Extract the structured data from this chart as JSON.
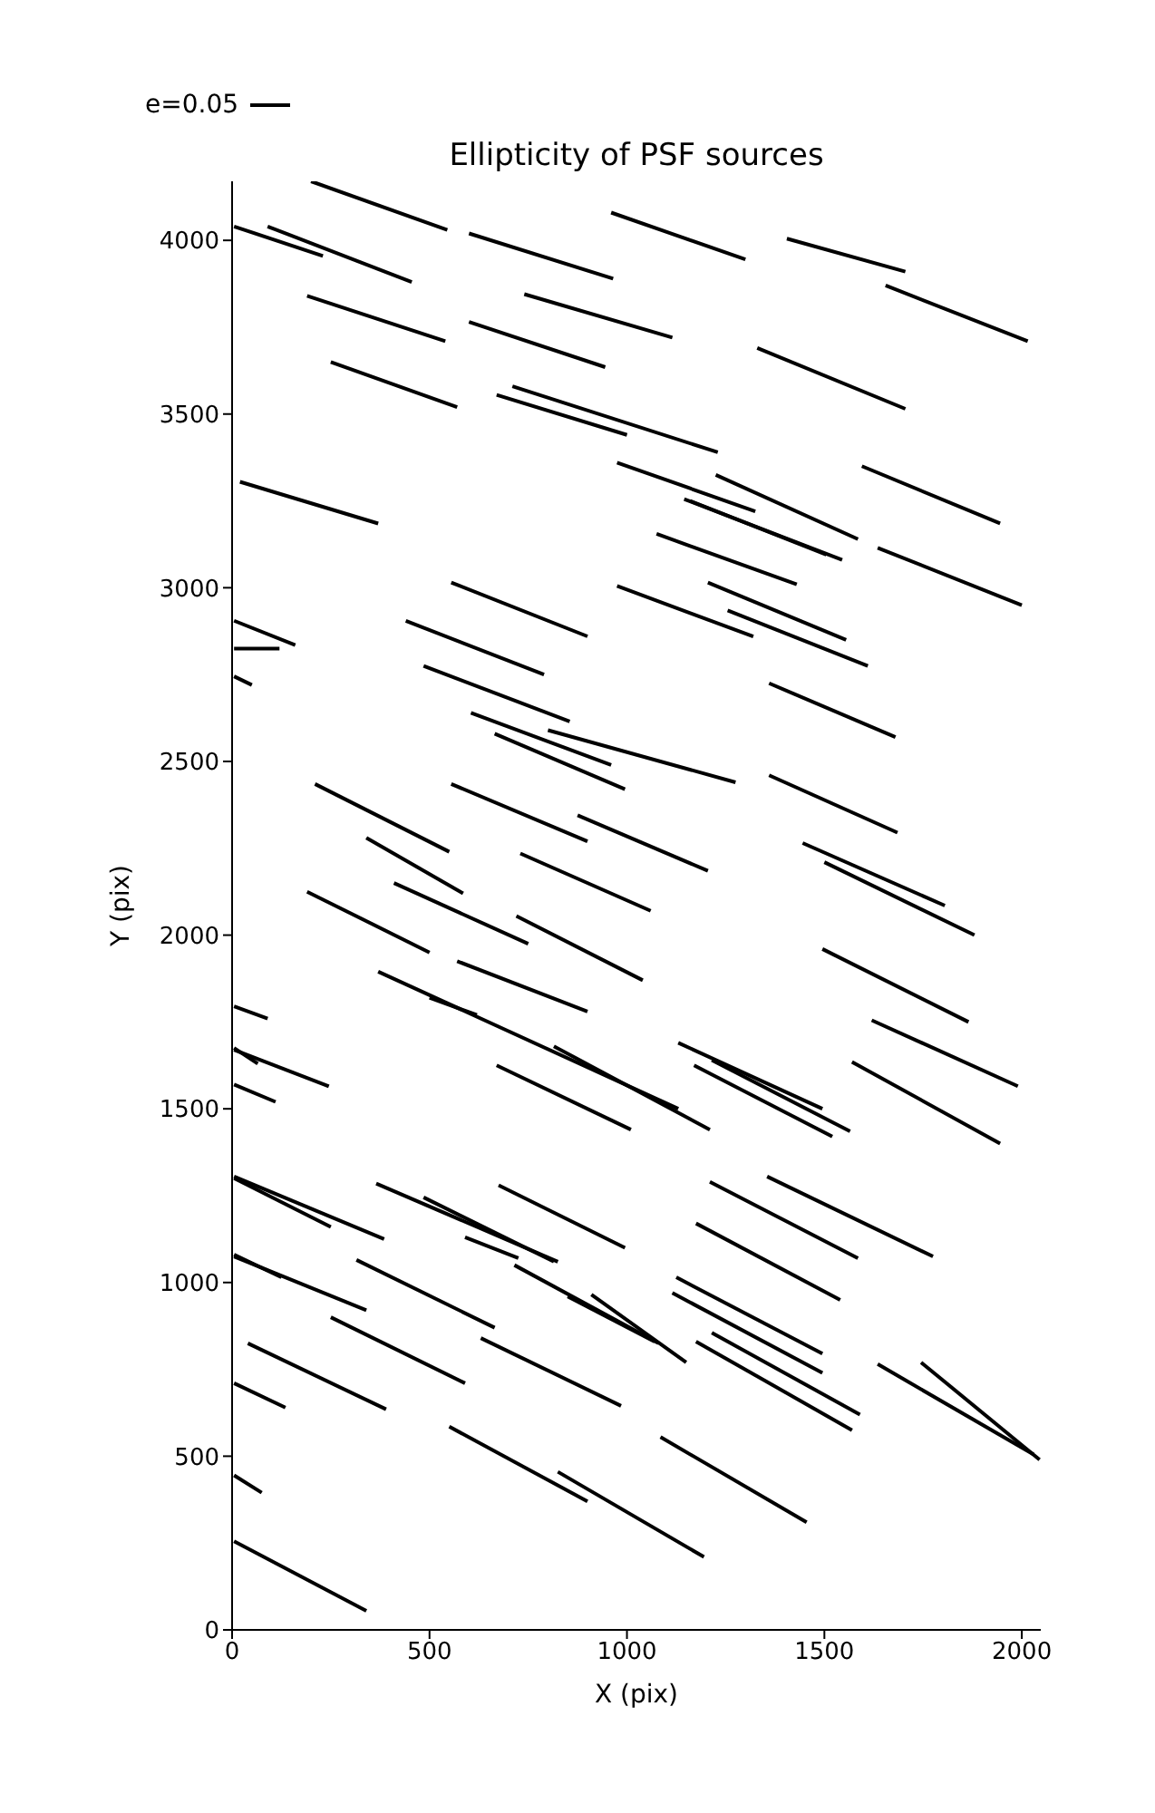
{
  "chart_data": {
    "type": "line",
    "title": "Ellipticity of PSF sources",
    "xlabel": "X (pix)",
    "ylabel": "Y (pix)",
    "line_style": "solid",
    "annotations": [
      "e=0.05"
    ],
    "xlim": [
      0,
      2048
    ],
    "ylim": [
      0,
      4170
    ],
    "xticks": [
      0,
      500,
      1000,
      1500,
      2000
    ],
    "yticks": [
      0,
      500,
      1000,
      1500,
      2000,
      2500,
      3000,
      3500,
      4000
    ],
    "series": [
      {
        "color": "#000000",
        "x": [
          200,
          545
        ],
        "values": [
          4170,
          4030
        ]
      },
      {
        "color": "#000000",
        "x": [
          5,
          230
        ],
        "values": [
          4040,
          3955
        ]
      },
      {
        "color": "#000000",
        "x": [
          90,
          455
        ],
        "values": [
          4040,
          3880
        ]
      },
      {
        "color": "#000000",
        "x": [
          600,
          965
        ],
        "values": [
          4020,
          3890
        ]
      },
      {
        "color": "#000000",
        "x": [
          960,
          1300
        ],
        "values": [
          4080,
          3945
        ]
      },
      {
        "color": "#000000",
        "x": [
          1405,
          1705
        ],
        "values": [
          4005,
          3910
        ]
      },
      {
        "color": "#000000",
        "x": [
          1655,
          2015
        ],
        "values": [
          3870,
          3710
        ]
      },
      {
        "color": "#000000",
        "x": [
          190,
          540
        ],
        "values": [
          3840,
          3710
        ]
      },
      {
        "color": "#000000",
        "x": [
          740,
          1115
        ],
        "values": [
          3845,
          3720
        ]
      },
      {
        "color": "#000000",
        "x": [
          600,
          945
        ],
        "values": [
          3765,
          3635
        ]
      },
      {
        "color": "#000000",
        "x": [
          1330,
          1705
        ],
        "values": [
          3690,
          3515
        ]
      },
      {
        "color": "#000000",
        "x": [
          250,
          570
        ],
        "values": [
          3650,
          3520
        ]
      },
      {
        "color": "#000000",
        "x": [
          710,
          1230
        ],
        "values": [
          3580,
          3390
        ]
      },
      {
        "color": "#000000",
        "x": [
          670,
          1000
        ],
        "values": [
          3555,
          3440
        ]
      },
      {
        "color": "#000000",
        "x": [
          20,
          370
        ],
        "values": [
          3305,
          3185
        ]
      },
      {
        "color": "#000000",
        "x": [
          975,
          1325
        ],
        "values": [
          3360,
          3220
        ]
      },
      {
        "color": "#000000",
        "x": [
          1225,
          1585
        ],
        "values": [
          3325,
          3140
        ]
      },
      {
        "color": "#000000",
        "x": [
          1595,
          1945
        ],
        "values": [
          3350,
          3185
        ]
      },
      {
        "color": "#000000",
        "x": [
          1145,
          1545
        ],
        "values": [
          3255,
          3080
        ]
      },
      {
        "color": "#000000",
        "x": [
          1160,
          1505
        ],
        "values": [
          3250,
          3095
        ]
      },
      {
        "color": "#000000",
        "x": [
          1075,
          1430
        ],
        "values": [
          3155,
          3010
        ]
      },
      {
        "color": "#000000",
        "x": [
          1635,
          2000
        ],
        "values": [
          3115,
          2950
        ]
      },
      {
        "color": "#000000",
        "x": [
          555,
          900
        ],
        "values": [
          3015,
          2860
        ]
      },
      {
        "color": "#000000",
        "x": [
          975,
          1320
        ],
        "values": [
          3005,
          2860
        ]
      },
      {
        "color": "#000000",
        "x": [
          1205,
          1555
        ],
        "values": [
          3015,
          2850
        ]
      },
      {
        "color": "#000000",
        "x": [
          1255,
          1610
        ],
        "values": [
          2935,
          2775
        ]
      },
      {
        "color": "#000000",
        "x": [
          5,
          160
        ],
        "values": [
          2905,
          2835
        ]
      },
      {
        "color": "#000000",
        "x": [
          5,
          120
        ],
        "values": [
          2825,
          2825
        ]
      },
      {
        "color": "#000000",
        "x": [
          440,
          790
        ],
        "values": [
          2905,
          2750
        ]
      },
      {
        "color": "#000000",
        "x": [
          5,
          50
        ],
        "values": [
          2745,
          2720
        ]
      },
      {
        "color": "#000000",
        "x": [
          485,
          855
        ],
        "values": [
          2775,
          2615
        ]
      },
      {
        "color": "#000000",
        "x": [
          1360,
          1680
        ],
        "values": [
          2725,
          2570
        ]
      },
      {
        "color": "#000000",
        "x": [
          605,
          960
        ],
        "values": [
          2640,
          2490
        ]
      },
      {
        "color": "#000000",
        "x": [
          665,
          995
        ],
        "values": [
          2580,
          2420
        ]
      },
      {
        "color": "#000000",
        "x": [
          800,
          1275
        ],
        "values": [
          2590,
          2440
        ]
      },
      {
        "color": "#000000",
        "x": [
          1360,
          1685
        ],
        "values": [
          2460,
          2295
        ]
      },
      {
        "color": "#000000",
        "x": [
          210,
          550
        ],
        "values": [
          2435,
          2240
        ]
      },
      {
        "color": "#000000",
        "x": [
          555,
          900
        ],
        "values": [
          2435,
          2270
        ]
      },
      {
        "color": "#000000",
        "x": [
          875,
          1205
        ],
        "values": [
          2345,
          2185
        ]
      },
      {
        "color": "#000000",
        "x": [
          340,
          585
        ],
        "values": [
          2280,
          2120
        ]
      },
      {
        "color": "#000000",
        "x": [
          730,
          1060
        ],
        "values": [
          2235,
          2070
        ]
      },
      {
        "color": "#000000",
        "x": [
          1445,
          1805
        ],
        "values": [
          2265,
          2085
        ]
      },
      {
        "color": "#000000",
        "x": [
          1500,
          1880
        ],
        "values": [
          2210,
          2000
        ]
      },
      {
        "color": "#000000",
        "x": [
          190,
          500
        ],
        "values": [
          2125,
          1950
        ]
      },
      {
        "color": "#000000",
        "x": [
          410,
          750
        ],
        "values": [
          2150,
          1975
        ]
      },
      {
        "color": "#000000",
        "x": [
          720,
          1040
        ],
        "values": [
          2055,
          1870
        ]
      },
      {
        "color": "#000000",
        "x": [
          1495,
          1865
        ],
        "values": [
          1960,
          1750
        ]
      },
      {
        "color": "#000000",
        "x": [
          370,
          1130
        ],
        "values": [
          1895,
          1500
        ]
      },
      {
        "color": "#000000",
        "x": [
          500,
          620
        ],
        "values": [
          1820,
          1770
        ]
      },
      {
        "color": "#000000",
        "x": [
          570,
          900
        ],
        "values": [
          1925,
          1780
        ]
      },
      {
        "color": "#000000",
        "x": [
          815,
          1210
        ],
        "values": [
          1680,
          1440
        ]
      },
      {
        "color": "#000000",
        "x": [
          670,
          1010
        ],
        "values": [
          1625,
          1440
        ]
      },
      {
        "color": "#000000",
        "x": [
          1620,
          1990
        ],
        "values": [
          1755,
          1565
        ]
      },
      {
        "color": "#000000",
        "x": [
          1130,
          1495
        ],
        "values": [
          1690,
          1500
        ]
      },
      {
        "color": "#000000",
        "x": [
          1170,
          1520
        ],
        "values": [
          1625,
          1420
        ]
      },
      {
        "color": "#000000",
        "x": [
          1215,
          1565
        ],
        "values": [
          1640,
          1435
        ]
      },
      {
        "color": "#000000",
        "x": [
          1570,
          1945
        ],
        "values": [
          1635,
          1400
        ]
      },
      {
        "color": "#000000",
        "x": [
          5,
          90
        ],
        "values": [
          1795,
          1760
        ]
      },
      {
        "color": "#000000",
        "x": [
          5,
          245
        ],
        "values": [
          1670,
          1565
        ]
      },
      {
        "color": "#000000",
        "x": [
          5,
          65
        ],
        "values": [
          1675,
          1630
        ]
      },
      {
        "color": "#000000",
        "x": [
          5,
          110
        ],
        "values": [
          1570,
          1520
        ]
      },
      {
        "color": "#000000",
        "x": [
          5,
          385
        ],
        "values": [
          1305,
          1125
        ]
      },
      {
        "color": "#000000",
        "x": [
          5,
          250
        ],
        "values": [
          1300,
          1160
        ]
      },
      {
        "color": "#000000",
        "x": [
          365,
          825
        ],
        "values": [
          1285,
          1060
        ]
      },
      {
        "color": "#000000",
        "x": [
          485,
          815
        ],
        "values": [
          1245,
          1060
        ]
      },
      {
        "color": "#000000",
        "x": [
          590,
          725
        ],
        "values": [
          1130,
          1070
        ]
      },
      {
        "color": "#000000",
        "x": [
          675,
          995
        ],
        "values": [
          1280,
          1100
        ]
      },
      {
        "color": "#000000",
        "x": [
          1210,
          1585
        ],
        "values": [
          1290,
          1070
        ]
      },
      {
        "color": "#000000",
        "x": [
          1355,
          1775
        ],
        "values": [
          1305,
          1075
        ]
      },
      {
        "color": "#000000",
        "x": [
          1175,
          1540
        ],
        "values": [
          1170,
          950
        ]
      },
      {
        "color": "#000000",
        "x": [
          5,
          125
        ],
        "values": [
          1080,
          1015
        ]
      },
      {
        "color": "#000000",
        "x": [
          5,
          340
        ],
        "values": [
          1075,
          920
        ]
      },
      {
        "color": "#000000",
        "x": [
          315,
          665
        ],
        "values": [
          1065,
          870
        ]
      },
      {
        "color": "#000000",
        "x": [
          715,
          1080
        ],
        "values": [
          1050,
          825
        ]
      },
      {
        "color": "#000000",
        "x": [
          850,
          1070
        ],
        "values": [
          960,
          830
        ]
      },
      {
        "color": "#000000",
        "x": [
          910,
          1150
        ],
        "values": [
          965,
          770
        ]
      },
      {
        "color": "#000000",
        "x": [
          1125,
          1495
        ],
        "values": [
          1015,
          795
        ]
      },
      {
        "color": "#000000",
        "x": [
          1115,
          1495
        ],
        "values": [
          970,
          740
        ]
      },
      {
        "color": "#000000",
        "x": [
          1215,
          1590
        ],
        "values": [
          855,
          620
        ]
      },
      {
        "color": "#000000",
        "x": [
          1175,
          1570
        ],
        "values": [
          830,
          575
        ]
      },
      {
        "color": "#000000",
        "x": [
          250,
          590
        ],
        "values": [
          900,
          710
        ]
      },
      {
        "color": "#000000",
        "x": [
          630,
          985
        ],
        "values": [
          840,
          645
        ]
      },
      {
        "color": "#000000",
        "x": [
          40,
          390
        ],
        "values": [
          825,
          635
        ]
      },
      {
        "color": "#000000",
        "x": [
          5,
          135
        ],
        "values": [
          710,
          640
        ]
      },
      {
        "color": "#000000",
        "x": [
          1635,
          2030
        ],
        "values": [
          765,
          505
        ]
      },
      {
        "color": "#000000",
        "x": [
          1745,
          2045
        ],
        "values": [
          770,
          490
        ]
      },
      {
        "color": "#000000",
        "x": [
          5,
          75
        ],
        "values": [
          445,
          395
        ]
      },
      {
        "color": "#000000",
        "x": [
          550,
          900
        ],
        "values": [
          585,
          370
        ]
      },
      {
        "color": "#000000",
        "x": [
          825,
          1195
        ],
        "values": [
          455,
          210
        ]
      },
      {
        "color": "#000000",
        "x": [
          1085,
          1455
        ],
        "values": [
          555,
          310
        ]
      },
      {
        "color": "#000000",
        "x": [
          5,
          340
        ],
        "values": [
          255,
          55
        ]
      }
    ]
  }
}
